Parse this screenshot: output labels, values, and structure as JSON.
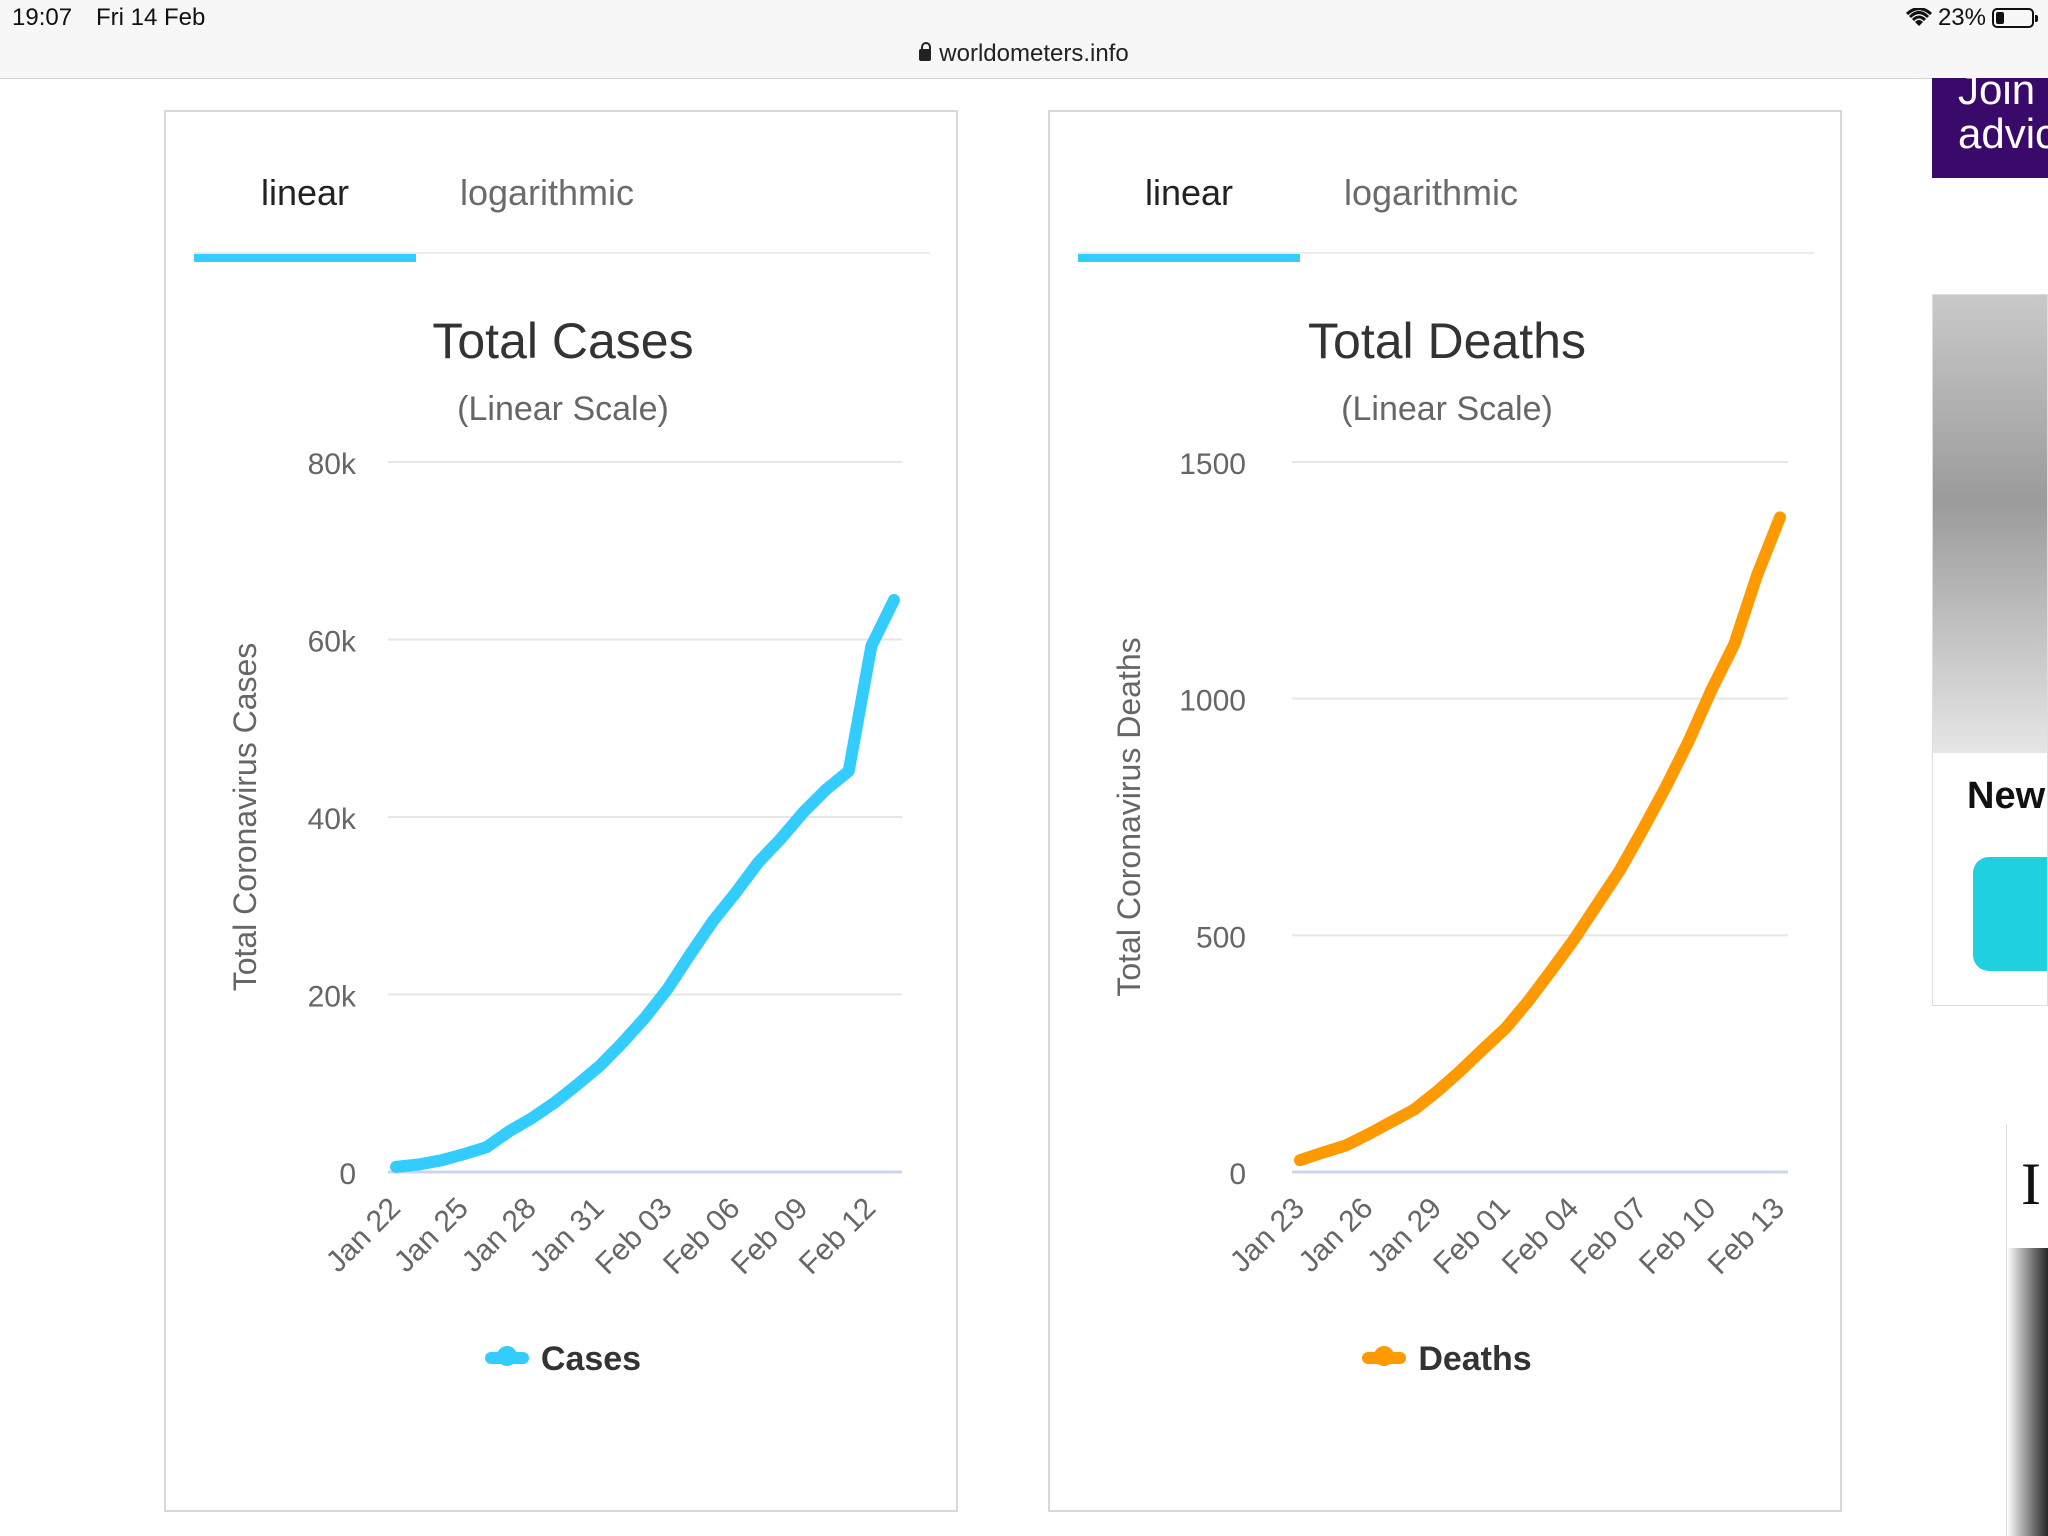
{
  "status_bar": {
    "time": "19:07",
    "date": "Fri 14 Feb",
    "url": "worldometers.info",
    "battery": "23%"
  },
  "panels": [
    {
      "tabs": [
        "linear",
        "logarithmic"
      ],
      "active_tab": 0
    },
    {
      "tabs": [
        "linear",
        "logarithmic"
      ],
      "active_tab": 0
    }
  ],
  "ads": {
    "ad1_lines": [
      "Join",
      "advic"
    ],
    "ad2_title": "New",
    "ad3_letter": "I"
  },
  "chart_data": [
    {
      "type": "line",
      "title": "Total Cases",
      "subtitle": "(Linear Scale)",
      "ylabel": "Total Coronavirus Cases",
      "xlabel": "",
      "ylim": [
        0,
        80000
      ],
      "yticks": [
        0,
        20000,
        40000,
        60000,
        80000
      ],
      "ytick_labels": [
        "0",
        "20k",
        "40k",
        "60k",
        "80k"
      ],
      "xtick_labels": [
        "Jan 22",
        "Jan 25",
        "Jan 28",
        "Jan 31",
        "Feb 03",
        "Feb 06",
        "Feb 09",
        "Feb 12"
      ],
      "x": [
        "Jan 22",
        "Jan 23",
        "Jan 24",
        "Jan 25",
        "Jan 26",
        "Jan 27",
        "Jan 28",
        "Jan 29",
        "Jan 30",
        "Jan 31",
        "Feb 01",
        "Feb 02",
        "Feb 03",
        "Feb 04",
        "Feb 05",
        "Feb 06",
        "Feb 07",
        "Feb 08",
        "Feb 09",
        "Feb 10",
        "Feb 11",
        "Feb 12",
        "Feb 13"
      ],
      "series": [
        {
          "name": "Cases",
          "color": "#33ccff",
          "values": [
            580,
            845,
            1317,
            2015,
            2800,
            4581,
            6058,
            7813,
            9823,
            11950,
            14553,
            17391,
            20630,
            24545,
            28266,
            31439,
            34876,
            37552,
            40553,
            43099,
            45170,
            59283,
            64453
          ]
        }
      ],
      "legend_position": "bottom",
      "grid": true
    },
    {
      "type": "line",
      "title": "Total Deaths",
      "subtitle": "(Linear Scale)",
      "ylabel": "Total Coronavirus Deaths",
      "xlabel": "",
      "ylim": [
        0,
        1500
      ],
      "yticks": [
        0,
        500,
        1000,
        1500
      ],
      "ytick_labels": [
        "0",
        "500",
        "1000",
        "1500"
      ],
      "xtick_labels": [
        "Jan 23",
        "Jan 26",
        "Jan 29",
        "Feb 01",
        "Feb 04",
        "Feb 07",
        "Feb 10",
        "Feb 13"
      ],
      "x": [
        "Jan 23",
        "Jan 24",
        "Jan 25",
        "Jan 26",
        "Jan 27",
        "Jan 28",
        "Jan 29",
        "Jan 30",
        "Jan 31",
        "Feb 01",
        "Feb 02",
        "Feb 03",
        "Feb 04",
        "Feb 05",
        "Feb 06",
        "Feb 07",
        "Feb 08",
        "Feb 09",
        "Feb 10",
        "Feb 11",
        "Feb 12",
        "Feb 13"
      ],
      "series": [
        {
          "name": "Deaths",
          "color": "#ff9900",
          "values": [
            25,
            41,
            56,
            80,
            106,
            132,
            170,
            213,
            259,
            304,
            362,
            426,
            492,
            565,
            638,
            724,
            813,
            910,
            1018,
            1115,
            1261,
            1383
          ]
        }
      ],
      "legend_position": "bottom",
      "grid": true
    }
  ]
}
